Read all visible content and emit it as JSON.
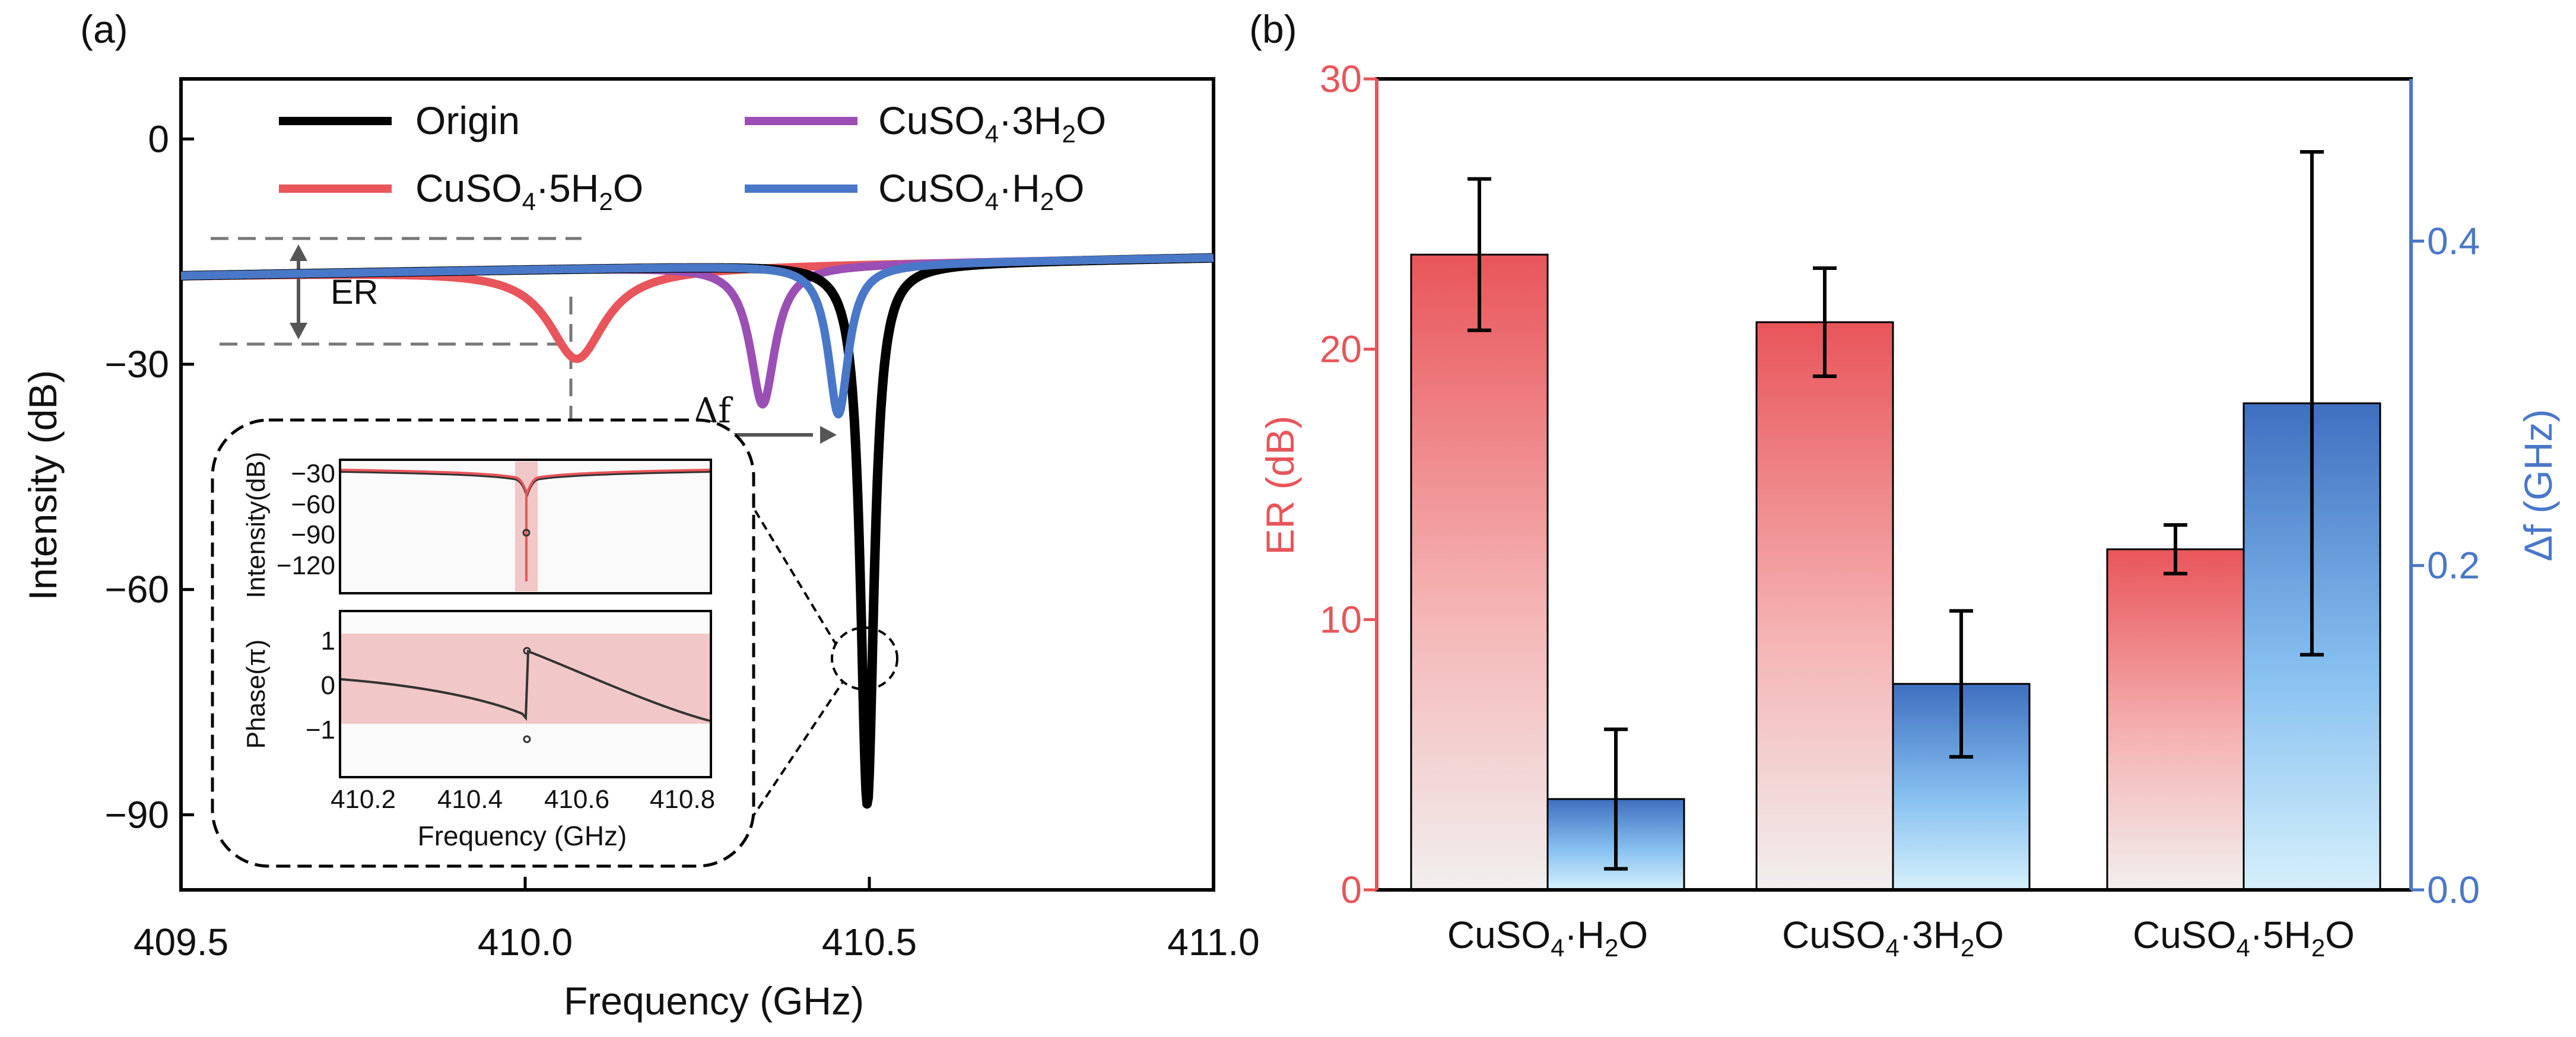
{
  "chart_data": [
    {
      "panel": "(a)",
      "type": "line",
      "xlabel": "Frequency (GHz)",
      "ylabel": "Intensity (dB)",
      "xlim": [
        409.5,
        411.0
      ],
      "ylim": [
        -100,
        8
      ],
      "x_ticks": [
        "409.5",
        "410.0",
        "410.5",
        "411.0"
      ],
      "y_ticks": [
        "0",
        "−30",
        "−60",
        "−90"
      ],
      "series": [
        {
          "key": "origin",
          "name": "Origin",
          "color": "#000000",
          "baseline": -17,
          "dip_center": 410.497,
          "dip_min": -89,
          "dip_width": 0.012
        },
        {
          "key": "cu5",
          "name": "CuSO4·5H2O",
          "color": "#e8555a",
          "baseline": -17,
          "dip_center": 410.075,
          "dip_min": -29,
          "dip_width": 0.05
        },
        {
          "key": "cu3",
          "name": "CuSO4·3H2O",
          "color": "#9b4fb5",
          "baseline": -17,
          "dip_center": 410.345,
          "dip_min": -35.5,
          "dip_width": 0.022
        },
        {
          "key": "cu1",
          "name": "CuSO4·H2O",
          "color": "#4a78c8",
          "baseline": -17,
          "dip_center": 410.455,
          "dip_min": -37,
          "dip_width": 0.018
        }
      ],
      "annotations": {
        "er_label": "ER",
        "df_label": "Δf"
      },
      "inset": {
        "xlabel": "Frequency (GHz)",
        "x_ticks": [
          "410.2",
          "410.4",
          "410.6",
          "410.8"
        ],
        "top_ylabel": "Intensity(dB)",
        "top_y_ticks": [
          "−30",
          "−60",
          "−90",
          "−120"
        ],
        "bottom_ylabel": "Phase(π)",
        "bottom_y_ticks": [
          "1",
          "0",
          "−1"
        ]
      }
    },
    {
      "panel": "(b)",
      "type": "bar",
      "categories": [
        {
          "base": "CuSO",
          "sub1": "4",
          "mid": "·",
          "n": "",
          "mid2": "H",
          "sub2": "2",
          "end": "O"
        },
        {
          "base": "CuSO",
          "sub1": "4",
          "mid": "·",
          "n": "3",
          "mid2": "H",
          "sub2": "2",
          "end": "O"
        },
        {
          "base": "CuSO",
          "sub1": "4",
          "mid": "·",
          "n": "5",
          "mid2": "H",
          "sub2": "2",
          "end": "O"
        }
      ],
      "series": [
        {
          "name": "ER",
          "axis": "left",
          "values": [
            23.5,
            21.0,
            12.6
          ],
          "errors": [
            2.8,
            2.0,
            0.9
          ],
          "color": "#e8555a"
        },
        {
          "name": "Δf",
          "axis": "right",
          "values": [
            0.056,
            0.127,
            0.3
          ],
          "errors": [
            0.043,
            0.045,
            0.155
          ],
          "color": "#4a78c8"
        }
      ],
      "ylabel_left": "ER (dB)",
      "ylabel_right": "Δf (GHz)",
      "ylim_left": [
        0,
        30
      ],
      "ylim_right": [
        0,
        0.5
      ],
      "left_ticks": [
        "0",
        "10",
        "20",
        "30"
      ],
      "right_ticks": [
        "0.0",
        "0.2",
        "0.4"
      ]
    }
  ]
}
